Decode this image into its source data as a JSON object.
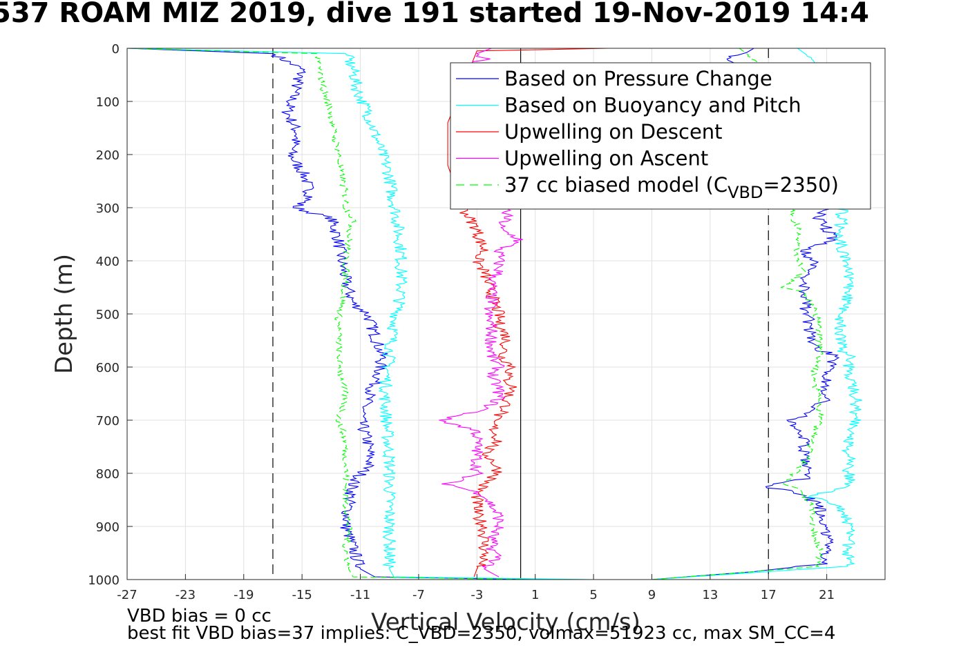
{
  "title": "537 ROAM MIZ 2019, dive 191 started 19-Nov-2019 14:4",
  "notes": [
    "VBD bias = 0 cc",
    "best fit VBD bias=37 implies: C_VBD=2350, volmax=51923 cc, max SM_CC=4"
  ],
  "chart_data": {
    "type": "line",
    "xlabel": "Vertical Velocity (cm/s)",
    "ylabel": "Depth (m)",
    "xlim": [
      -27,
      25
    ],
    "ylim": [
      0,
      1000
    ],
    "y_reversed": true,
    "grid": true,
    "legend_position": "top-right",
    "xticks": [
      -27,
      -23,
      -19,
      -15,
      -11,
      -7,
      -3,
      1,
      5,
      9,
      13,
      17,
      21
    ],
    "yticks": [
      0,
      100,
      200,
      300,
      400,
      500,
      600,
      700,
      800,
      900,
      1000
    ],
    "reference_lines": [
      {
        "x": -17,
        "style": "dashed",
        "color": "#000000"
      },
      {
        "x": 17,
        "style": "dashed",
        "color": "#000000"
      },
      {
        "x": 0,
        "style": "solid",
        "color": "#000000"
      }
    ],
    "series": [
      {
        "name": "Based on Pressure Change",
        "color": "#0000ff",
        "style": "solid",
        "segments": [
          {
            "depth": [
              0,
              10,
              40,
              80,
              120,
              160,
              200,
              240,
              280,
              300,
              320,
              360,
              400,
              440,
              480,
              500,
              540,
              580,
              620,
              660,
              700,
              740,
              780,
              820,
              860,
              900,
              940,
              980,
              995,
              1000
            ],
            "velocity": [
              -27,
              -17,
              -15,
              -15.5,
              -16,
              -15.3,
              -15.8,
              -14.8,
              -14.4,
              -15.5,
              -13,
              -12.5,
              -12.3,
              -12,
              -11.5,
              -10.5,
              -10,
              -9.5,
              -9.8,
              -10.5,
              -11,
              -10.5,
              -10.3,
              -11.5,
              -11.8,
              -12,
              -11.5,
              -11,
              -10,
              1
            ]
          },
          {
            "depth": [
              1000,
              985,
              970,
              940,
              900,
              860,
              835,
              825,
              810,
              780,
              740,
              700,
              690,
              660,
              620,
              580,
              560,
              520,
              480,
              440,
              400,
              380,
              360,
              320,
              300,
              200,
              100,
              20,
              8,
              0
            ],
            "velocity": [
              9,
              16,
              21,
              21,
              21,
              20.5,
              19,
              16.5,
              19.5,
              19.5,
              19.5,
              18.5,
              19.5,
              21,
              21,
              21.5,
              20,
              19.8,
              19.5,
              19.5,
              20,
              19.5,
              21.5,
              20.5,
              21,
              21,
              21,
              14,
              15.5,
              16
            ]
          }
        ]
      },
      {
        "name": "Based on Buoyancy and Pitch",
        "color": "#00ffff",
        "style": "solid",
        "segments": [
          {
            "depth": [
              0,
              10,
              40,
              80,
              120,
              160,
              200,
              240,
              280,
              300,
              340,
              380,
              420,
              460,
              500,
              540,
              580,
              620,
              660,
              700,
              740,
              780,
              820,
              860,
              900,
              940,
              980,
              995,
              1000
            ],
            "velocity": [
              -27,
              -12,
              -11.5,
              -11.2,
              -10.5,
              -10,
              -9.5,
              -9,
              -8.8,
              -8.6,
              -8.4,
              -8.2,
              -8.2,
              -8.2,
              -8.5,
              -8.8,
              -9,
              -9.2,
              -9.3,
              -9.2,
              -9.1,
              -9,
              -9,
              -9,
              -9,
              -9,
              -9,
              -8.7,
              5
            ]
          },
          {
            "depth": [
              1000,
              985,
              975,
              940,
              900,
              860,
              845,
              820,
              780,
              740,
              700,
              660,
              620,
              580,
              570,
              540,
              500,
              460,
              420,
              380,
              340,
              300,
              200,
              100,
              20,
              0
            ],
            "velocity": [
              9,
              17,
              22.5,
              22.5,
              22.5,
              22,
              20,
              22.5,
              22.5,
              22.5,
              23,
              23,
              22.5,
              22.5,
              22,
              22,
              22,
              22.5,
              22.5,
              22,
              22,
              22,
              22,
              22,
              20,
              19
            ]
          }
        ]
      },
      {
        "name": "Upwelling on Descent",
        "color": "#ff0000",
        "style": "solid",
        "segments": [
          {
            "depth": [
              0,
              5,
              140,
              220,
              300,
              320,
              340,
              360,
              380,
              400,
              420,
              440,
              460,
              480,
              500,
              520,
              540,
              560,
              580,
              600,
              620,
              640,
              660,
              680,
              700,
              720,
              740,
              760,
              780,
              800,
              820,
              840,
              860,
              880,
              900,
              920,
              940,
              960,
              980,
              995
            ],
            "velocity": [
              6,
              -3,
              -5,
              -5,
              -4,
              -3.5,
              -3,
              -2.8,
              -2.5,
              -3,
              -2.5,
              -2.3,
              -2,
              -1.8,
              -1.5,
              -1.5,
              -1,
              -1,
              -1.3,
              -0.5,
              -1,
              -0.5,
              -1,
              -1,
              -2,
              -1.8,
              -1.5,
              -2.5,
              -1.8,
              -1.5,
              -2.5,
              -3,
              -3,
              -3,
              -2.5,
              -2.5,
              -2.5,
              -2.5,
              -3,
              -3.2
            ]
          }
        ]
      },
      {
        "name": "Upwelling on Ascent",
        "color": "#ff00ff",
        "style": "solid",
        "segments": [
          {
            "depth": [
              0,
              10,
              20,
              30,
              300,
              320,
              340,
              360,
              380,
              400,
              420,
              440,
              460,
              480,
              500,
              520,
              540,
              560,
              580,
              600,
              620,
              640,
              660,
              680,
              700,
              720,
              740,
              760,
              780,
              800,
              820,
              840,
              860,
              880,
              900,
              920,
              940,
              960,
              980,
              995
            ],
            "velocity": [
              -2,
              -3,
              -2.5,
              -4,
              -1,
              -1,
              -1.5,
              0,
              -1.5,
              -1.5,
              -1.5,
              -2,
              -2,
              -2,
              -2.3,
              -2,
              -2,
              -2,
              -2,
              -1.5,
              -2,
              -1.5,
              -1.5,
              -2.5,
              -5.5,
              -3,
              -3,
              -3,
              -3,
              -3,
              -5,
              -2.5,
              -2,
              -1.5,
              -1.5,
              -2,
              -2,
              -1.5,
              -2.5,
              -1.5
            ]
          }
        ]
      },
      {
        "name": "37 cc biased model (C",
        "name_sub": "VBD",
        "name_tail": "=2350)",
        "color": "#00ff00",
        "style": "dashed",
        "segments": [
          {
            "depth": [
              0,
              10,
              40,
              80,
              120,
              160,
              200,
              240,
              280,
              300,
              320,
              360,
              400,
              440,
              480,
              500,
              540,
              580,
              620,
              660,
              700,
              740,
              780,
              820,
              860,
              900,
              940,
              980,
              995,
              1000
            ],
            "velocity": [
              -27,
              -14,
              -13.8,
              -13.5,
              -13,
              -12.8,
              -12.5,
              -12.3,
              -12,
              -12,
              -11.5,
              -11.8,
              -12,
              -12,
              -12.3,
              -12.5,
              -12.5,
              -12.5,
              -12.3,
              -12,
              -12.5,
              -12,
              -12,
              -12,
              -12,
              -11.8,
              -12,
              -11.8,
              -11.5,
              1
            ]
          },
          {
            "depth": [
              1000,
              985,
              975,
              940,
              900,
              860,
              830,
              820,
              780,
              740,
              700,
              660,
              620,
              580,
              540,
              500,
              480,
              460,
              450,
              420,
              400,
              380,
              340,
              300,
              200,
              100,
              20,
              0
            ],
            "velocity": [
              9,
              16,
              20.5,
              20.5,
              20,
              20,
              19,
              18,
              19.5,
              20,
              20.5,
              20.5,
              20,
              20.5,
              20.5,
              20.3,
              20,
              19.5,
              18,
              19.5,
              19,
              19,
              19,
              18.5,
              19,
              19,
              16,
              15
            ]
          }
        ]
      }
    ]
  }
}
